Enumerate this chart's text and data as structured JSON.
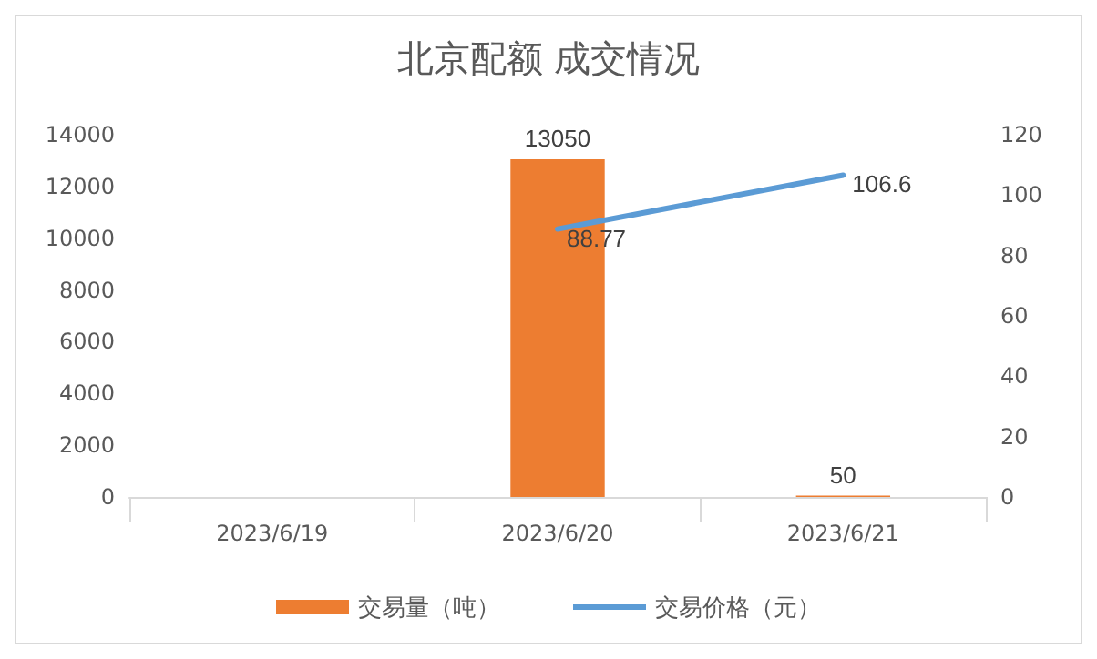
{
  "chart_data": {
    "type": "bar",
    "title": "北京配额 成交情况",
    "categories": [
      "2023/6/19",
      "2023/6/20",
      "2023/6/21"
    ],
    "series": [
      {
        "name": "交易量（吨）",
        "color": "#ed7d31",
        "values": [
          null,
          13050,
          50
        ]
      },
      {
        "name": "交易价格（元）",
        "type": "line",
        "axis": "y2",
        "color": "#5b9bd5",
        "values": [
          null,
          88.77,
          106.6
        ]
      }
    ],
    "ylim": [
      0,
      14000
    ],
    "yticks": [
      0,
      2000,
      4000,
      6000,
      8000,
      10000,
      12000,
      14000
    ],
    "y2lim": [
      0,
      120
    ],
    "y2ticks": [
      0,
      20,
      40,
      60,
      80,
      100,
      120
    ],
    "data_labels": true,
    "grid": false,
    "legend": "bottom",
    "marker": "none",
    "line_style": "solid"
  }
}
